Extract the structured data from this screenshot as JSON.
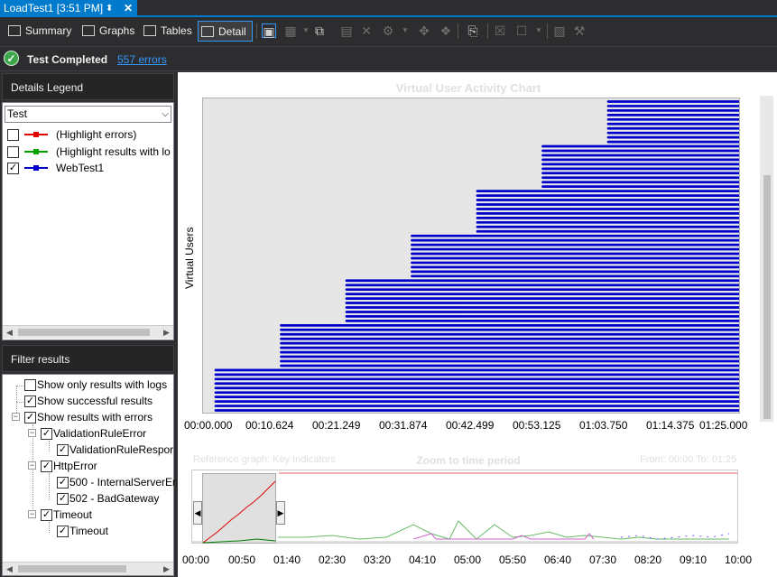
{
  "tab": {
    "title": "LoadTest1 [3:51 PM]",
    "pin_icon": "pin-icon",
    "close_icon": "close-icon"
  },
  "toolbar": {
    "summary": "Summary",
    "graphs": "Graphs",
    "tables": "Tables",
    "detail": "Detail",
    "active": "Detail"
  },
  "status": {
    "text": "Test Completed",
    "errors_link": "557 errors",
    "icon": "check-circle-icon"
  },
  "legend": {
    "title": "Details Legend",
    "dropdown_value": "Test",
    "items": [
      {
        "label": "(Highlight errors)",
        "checked": false,
        "color": "#e00000"
      },
      {
        "label": "(Highlight results with lo",
        "checked": false,
        "color": "#00a000"
      },
      {
        "label": "WebTest1",
        "checked": true,
        "color": "#0000cc"
      }
    ]
  },
  "filter": {
    "title": "Filter results",
    "items": [
      {
        "label": "Show only results with logs",
        "checked": false
      },
      {
        "label": "Show successful results",
        "checked": true
      },
      {
        "label": "Show results with errors",
        "checked": true
      },
      {
        "label": "ValidationRuleError",
        "checked": true
      },
      {
        "label": "ValidationRuleRespor",
        "checked": true
      },
      {
        "label": "HttpError",
        "checked": true
      },
      {
        "label": "500 - InternalServerEr",
        "checked": true
      },
      {
        "label": "502 - BadGateway",
        "checked": true
      },
      {
        "label": "Timeout",
        "checked": true
      },
      {
        "label": "Timeout",
        "checked": true
      }
    ]
  },
  "chart": {
    "title": "Virtual User Activity Chart",
    "ylabel": "Virtual Users",
    "xticks": [
      "00:00.000",
      "00:10.624",
      "00:21.249",
      "00:31.874",
      "00:42.499",
      "00:53.125",
      "01:03.750",
      "01:14.375",
      "01:25.000"
    ],
    "zoom_title": "Zoom to time period",
    "reference_label": "Reference graph: Key Indicators",
    "from_to": "From: 00:00   To: 01:25",
    "mini_xticks": [
      "00:00",
      "00:50",
      "01:40",
      "02:30",
      "03:20",
      "04:10",
      "05:00",
      "05:50",
      "06:40",
      "07:30",
      "08:20",
      "09:10",
      "10:00"
    ]
  },
  "chart_data": {
    "type": "bar",
    "title": "Virtual User Activity Chart",
    "ylabel": "Virtual Users",
    "x_range": [
      "00:00.000",
      "01:25.000"
    ],
    "user_groups": [
      {
        "start": "00:00.000",
        "end": "01:25.000",
        "users": 10
      },
      {
        "start": "00:10.624",
        "end": "01:25.000",
        "users": 10
      },
      {
        "start": "00:21.249",
        "end": "01:25.000",
        "users": 10
      },
      {
        "start": "00:31.874",
        "end": "01:25.000",
        "users": 10
      },
      {
        "start": "00:42.499",
        "end": "01:25.000",
        "users": 10
      },
      {
        "start": "00:53.125",
        "end": "01:25.000",
        "users": 10
      },
      {
        "start": "01:03.750",
        "end": "01:25.000",
        "users": 10
      }
    ],
    "colors": {
      "bars": "#0000cc",
      "plot_bg": "#e6e6e6"
    }
  }
}
